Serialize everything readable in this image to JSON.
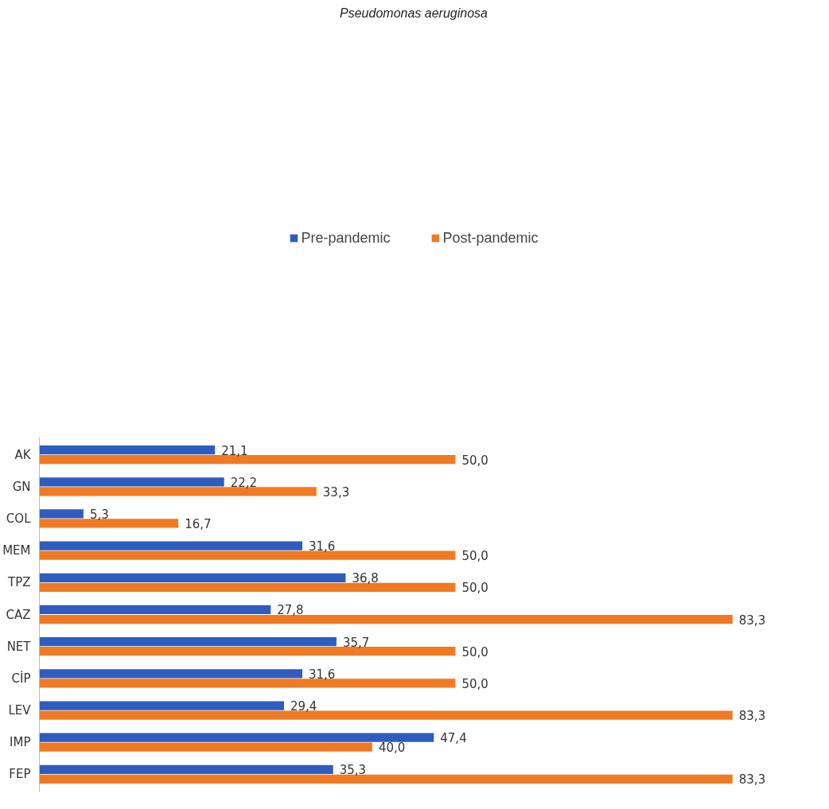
{
  "chart_data": {
    "type": "bar",
    "orientation": "horizontal",
    "title": "Pseudomonas aeruginosa",
    "categories": [
      "AK",
      "GN",
      "COL",
      "MEM",
      "TPZ",
      "CAZ",
      "NET",
      "CİP",
      "LEV",
      "IMP",
      "FEP"
    ],
    "series": [
      {
        "name": "Pre-pandemic",
        "color": "#2e5cbf",
        "values": [
          21.1,
          22.2,
          5.3,
          31.6,
          36.8,
          27.8,
          35.7,
          31.6,
          29.4,
          47.4,
          35.3
        ],
        "value_labels": [
          "21,1",
          "22,2",
          "5,3",
          "31,6",
          "36,8",
          "27,8",
          "35,7",
          "31,6",
          "29,4",
          "47,4",
          "35,3"
        ]
      },
      {
        "name": "Post-pandemic",
        "color": "#f07a22",
        "values": [
          50.0,
          33.3,
          16.7,
          50.0,
          50.0,
          83.3,
          50.0,
          50.0,
          83.3,
          40.0,
          83.3
        ],
        "value_labels": [
          "50,0",
          "33,3",
          "16,7",
          "50,0",
          "50,0",
          "83,3",
          "50,0",
          "50,0",
          "83,3",
          "40,0",
          "83,3"
        ]
      }
    ],
    "tick_labels": "y",
    "grid": false,
    "legend": "top"
  }
}
